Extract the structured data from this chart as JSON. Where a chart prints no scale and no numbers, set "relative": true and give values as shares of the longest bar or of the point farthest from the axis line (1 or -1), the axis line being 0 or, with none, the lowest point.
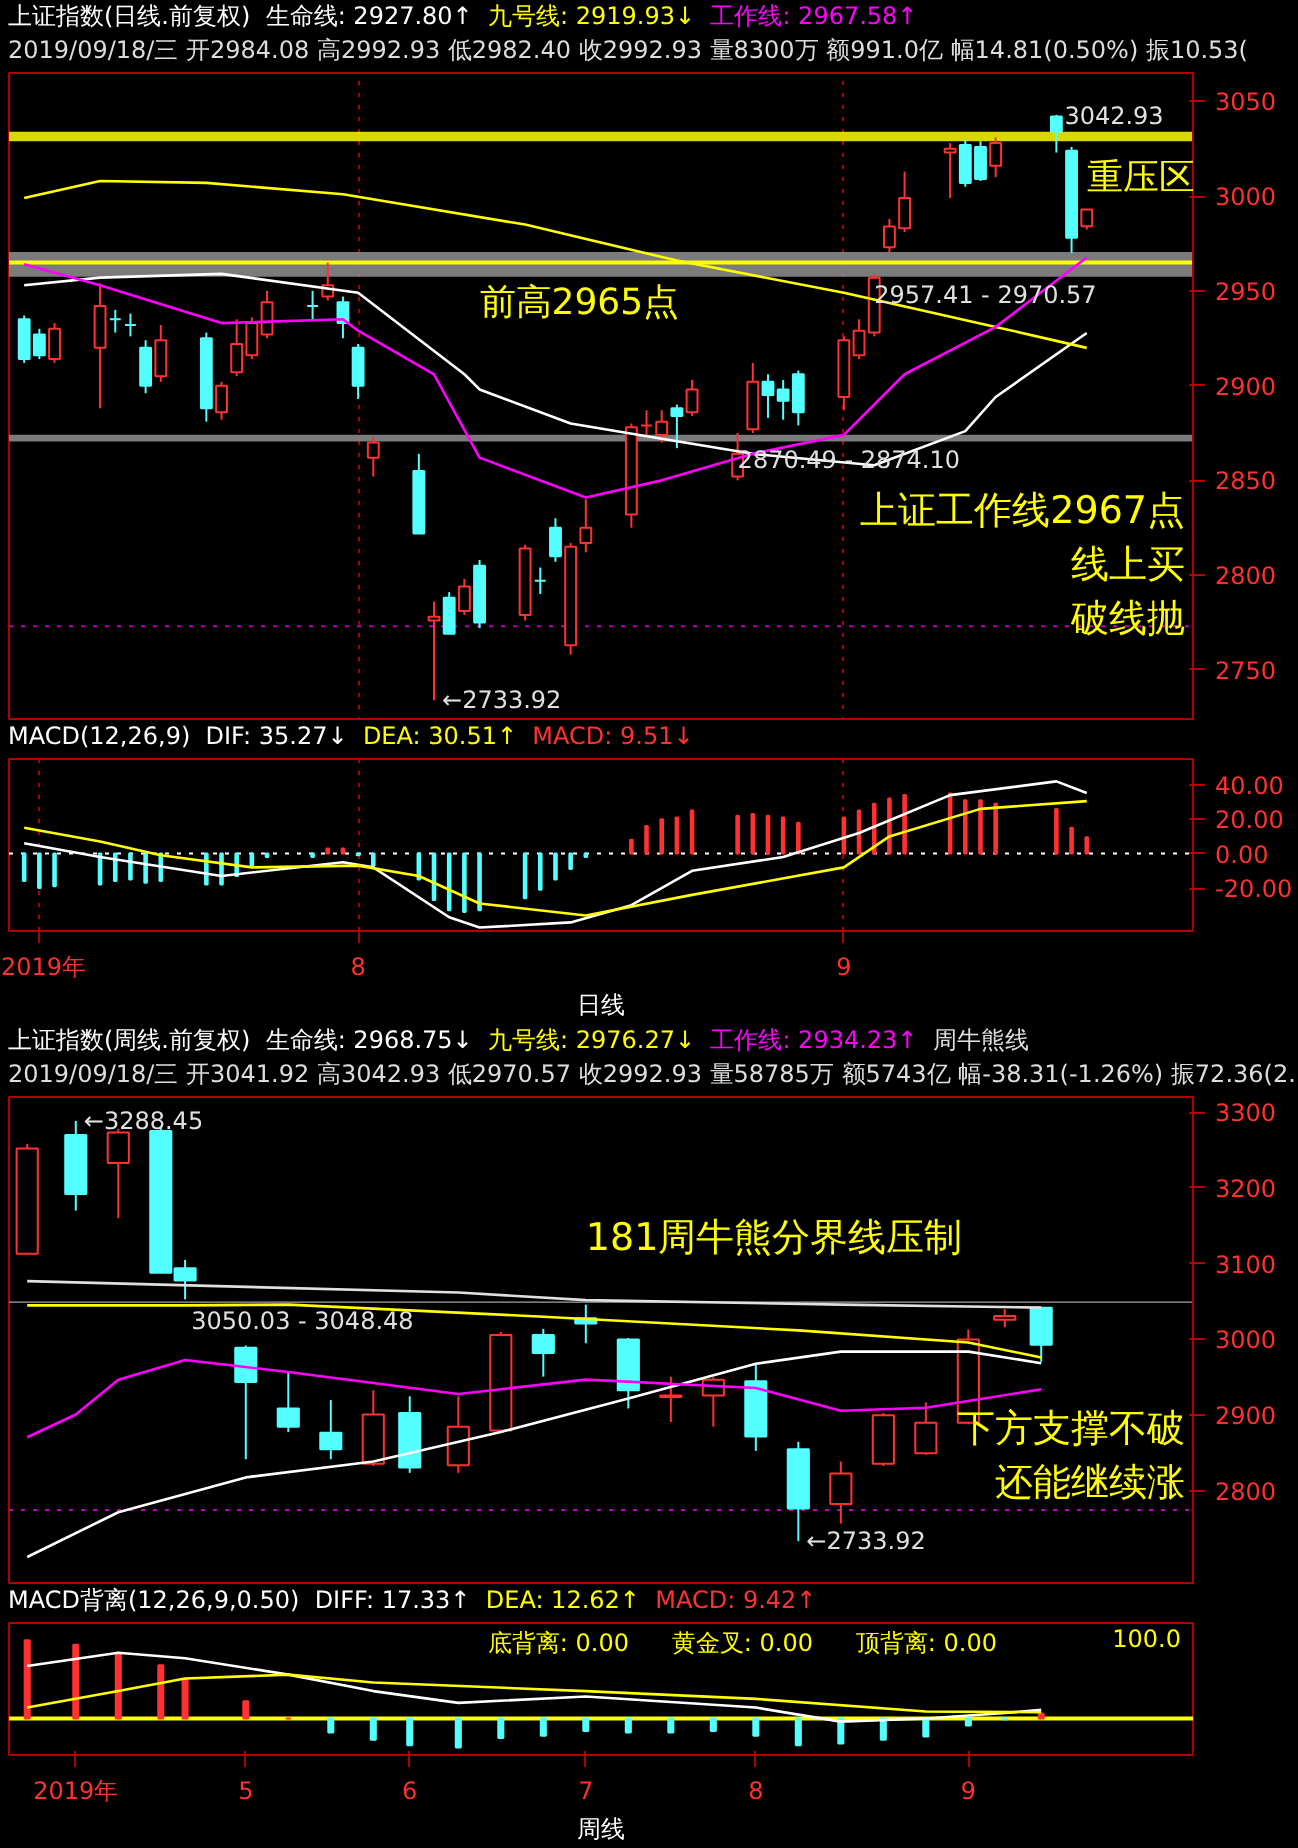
{
  "chart_data": [
    {
      "type": "candlestick",
      "title": "上证指数(日线.前复权)",
      "subtitle": "2019/09/18/三 开2984.08 高2992.93 低2982.40 收2992.93 量8300万 额991.0亿 幅14.81(0.50%) 振10.53(",
      "x": [
        "2019-07-10",
        "2019-07-11",
        "2019-07-12",
        "2019-07-15",
        "2019-07-16",
        "2019-07-17",
        "2019-07-18",
        "2019-07-19",
        "2019-07-22",
        "2019-07-23",
        "2019-07-24",
        "2019-07-25",
        "2019-07-26",
        "2019-07-29",
        "2019-07-30",
        "2019-07-31",
        "2019-08-01",
        "2019-08-02",
        "2019-08-05",
        "2019-08-06",
        "2019-08-07",
        "2019-08-08",
        "2019-08-09",
        "2019-08-12",
        "2019-08-13",
        "2019-08-14",
        "2019-08-15",
        "2019-08-16",
        "2019-08-19",
        "2019-08-20",
        "2019-08-21",
        "2019-08-22",
        "2019-08-23",
        "2019-08-26",
        "2019-08-27",
        "2019-08-28",
        "2019-08-29",
        "2019-08-30",
        "2019-09-02",
        "2019-09-03",
        "2019-09-04",
        "2019-09-05",
        "2019-09-06",
        "2019-09-09",
        "2019-09-10",
        "2019-09-11",
        "2019-09-12",
        "2019-09-16",
        "2019-09-17",
        "2019-09-18"
      ],
      "ohlc": [
        [
          2935,
          2937,
          2912,
          2914
        ],
        [
          2927,
          2930,
          2914,
          2916
        ],
        [
          2914,
          2933,
          2912,
          2930
        ],
        [
          2920,
          2954,
          2888,
          2942
        ],
        [
          2935,
          2940,
          2928,
          2935
        ],
        [
          2932,
          2938,
          2926,
          2932
        ],
        [
          2920,
          2924,
          2896,
          2900
        ],
        [
          2905,
          2932,
          2902,
          2924
        ],
        [
          2925,
          2928,
          2881,
          2888
        ],
        [
          2886,
          2902,
          2882,
          2900
        ],
        [
          2907,
          2935,
          2905,
          2922
        ],
        [
          2916,
          2936,
          2914,
          2933
        ],
        [
          2927,
          2950,
          2925,
          2944
        ],
        [
          2942,
          2950,
          2935,
          2942
        ],
        [
          2947,
          2965,
          2945,
          2953
        ],
        [
          2944,
          2947,
          2925,
          2933
        ],
        [
          2920,
          2922,
          2893,
          2900
        ],
        [
          2862,
          2873,
          2852,
          2870
        ],
        [
          2855,
          2864,
          2822,
          2822
        ],
        [
          2776,
          2786,
          2733.92,
          2778
        ],
        [
          2788,
          2791,
          2769,
          2769
        ],
        [
          2781,
          2798,
          2779,
          2794
        ],
        [
          2805,
          2808,
          2772,
          2775
        ],
        [
          2779,
          2816,
          2776,
          2814
        ],
        [
          2797,
          2804,
          2790,
          2797
        ],
        [
          2825,
          2830,
          2807,
          2810
        ],
        [
          2763,
          2817,
          2758,
          2815
        ],
        [
          2817,
          2840,
          2812,
          2825
        ],
        [
          2832,
          2880,
          2825,
          2878
        ],
        [
          2879,
          2887,
          2873,
          2879
        ],
        [
          2874,
          2887,
          2870,
          2881
        ],
        [
          2888,
          2890,
          2867,
          2884
        ],
        [
          2886,
          2903,
          2884,
          2898
        ],
        [
          2852,
          2875,
          2850,
          2864
        ],
        [
          2877,
          2912,
          2875,
          2902
        ],
        [
          2902,
          2906,
          2883,
          2895
        ],
        [
          2898,
          2903,
          2882,
          2892
        ],
        [
          2906,
          2908,
          2879,
          2886
        ],
        [
          2894,
          2926,
          2887,
          2924
        ],
        [
          2916,
          2935,
          2914,
          2929
        ],
        [
          2928,
          2959,
          2926,
          2957
        ],
        [
          2973,
          2988,
          2970,
          2984
        ],
        [
          2983,
          3013,
          2981,
          2999
        ],
        [
          3023,
          3028,
          2999,
          3025
        ],
        [
          3027,
          3030,
          3005,
          3007
        ],
        [
          3026,
          3029,
          3008,
          3009
        ],
        [
          3016,
          3031,
          3010,
          3028
        ],
        [
          3042,
          3042.93,
          3023,
          3034
        ],
        [
          3024,
          3026,
          2970,
          2978
        ],
        [
          2984.08,
          2992.93,
          2982.4,
          2992.93
        ]
      ],
      "colors": [
        "#54ffff",
        "#54ffff",
        "#ff3232",
        "#ff3232",
        "#54ffff",
        "#54ffff",
        "#54ffff",
        "#ff3232",
        "#54ffff",
        "#ff3232",
        "#ff3232",
        "#ff3232",
        "#ff3232",
        "#54ffff",
        "#ff3232",
        "#54ffff",
        "#54ffff",
        "#ff3232",
        "#54ffff",
        "#ff3232",
        "#54ffff",
        "#ff3232",
        "#54ffff",
        "#ff3232",
        "#54ffff",
        "#54ffff",
        "#ff3232",
        "#ff3232",
        "#ff3232",
        "#ff3232",
        "#ff3232",
        "#54ffff",
        "#ff3232",
        "#ff3232",
        "#ff3232",
        "#54ffff",
        "#54ffff",
        "#54ffff",
        "#ff3232",
        "#ff3232",
        "#ff3232",
        "#ff3232",
        "#ff3232",
        "#ff3232",
        "#54ffff",
        "#54ffff",
        "#ff3232",
        "#54ffff",
        "#54ffff",
        "#ff3232"
      ],
      "series": [
        {
          "name": "生命线: 2927.80↑",
          "type": "line",
          "color": "#ffffff",
          "x": [
            "2019-07-10",
            "2019-07-15",
            "2019-07-23",
            "2019-08-01",
            "2019-08-08",
            "2019-08-09",
            "2019-08-15",
            "2019-08-21",
            "2019-08-27",
            "2019-09-04",
            "2019-09-10",
            "2019-09-12",
            "2019-09-18"
          ],
          "values": [
            2953,
            2957,
            2959,
            2949,
            2906,
            2898,
            2880,
            2872,
            2864,
            2858,
            2876,
            2894,
            2927.8
          ]
        },
        {
          "name": "九号线: 2919.93↓",
          "type": "line",
          "color": "#ffff00",
          "x": [
            "2019-07-10",
            "2019-07-15",
            "2019-07-22",
            "2019-07-31",
            "2019-08-12",
            "2019-08-22",
            "2019-09-02",
            "2019-09-12",
            "2019-09-18"
          ],
          "values": [
            2999,
            3008,
            3007,
            3001,
            2985,
            2966,
            2949,
            2931,
            2919.93
          ]
        },
        {
          "name": "工作线: 2967.58↑",
          "type": "line",
          "color": "#ff00ff",
          "x": [
            "2019-07-10",
            "2019-07-15",
            "2019-07-23",
            "2019-07-31",
            "2019-08-01",
            "2019-08-06",
            "2019-08-09",
            "2019-08-16",
            "2019-08-21",
            "2019-08-27",
            "2019-09-02",
            "2019-09-06",
            "2019-09-12",
            "2019-09-18"
          ],
          "values": [
            2964,
            2953,
            2933,
            2935,
            2929,
            2906,
            2862,
            2841,
            2850,
            2864,
            2874,
            2906,
            2931,
            2967.58
          ]
        }
      ],
      "xlim": [
        "2019-07-09",
        "2019-09-25"
      ],
      "ylim": [
        2723,
        3065
      ],
      "xticks": [
        {
          "value": "2019-08-01",
          "label": null
        },
        {
          "value": "2019-09-02",
          "label": null
        }
      ],
      "yticks": [
        2750,
        2800,
        2850,
        2900,
        2950,
        3000,
        3050
      ],
      "tick_labels": "y",
      "grid": "x",
      "legend": "top",
      "ref_lines": [
        {
          "axis": "y",
          "value": 2965,
          "color": "#ffff00",
          "line_style": "solid"
        },
        {
          "axis": "y",
          "value": 2773,
          "color": "#c000c0",
          "line_style": "dotted"
        }
      ],
      "bands": [
        {
          "axis": "y",
          "from": 3029,
          "to": 3034,
          "color": "#ffff00"
        },
        {
          "axis": "y",
          "from": 2957.41,
          "to": 2970.57,
          "color": "#909090"
        },
        {
          "axis": "y",
          "from": 2870.49,
          "to": 2874.1,
          "color": "#909090"
        }
      ],
      "annotations": [
        {
          "text": "前高2965点",
          "x": "2019-08-09",
          "y": 2965
        },
        {
          "text": "重压区",
          "x": "2019-09-18",
          "y": 3031
        },
        "上证工作线2967点",
        "线上买",
        "破线抛",
        {
          "text": "3042.93",
          "x": "2019-09-16",
          "y": 3042.93
        },
        {
          "text": "←2733.92",
          "x": "2019-08-06",
          "y": 2733.92
        },
        {
          "text": "2957.41 - 2970.57",
          "x": "2019-09-04",
          "y": 2957.41
        },
        {
          "text": "2870.49 - 2874.10",
          "x": "2019-08-26",
          "y": 2870.49
        }
      ]
    },
    {
      "type": "bar",
      "title": "MACD(12,26,9)",
      "xlabel": "日线",
      "x": [
        "2019-07-10",
        "2019-07-11",
        "2019-07-12",
        "2019-07-15",
        "2019-07-16",
        "2019-07-17",
        "2019-07-18",
        "2019-07-19",
        "2019-07-22",
        "2019-07-23",
        "2019-07-24",
        "2019-07-25",
        "2019-07-26",
        "2019-07-29",
        "2019-07-30",
        "2019-07-31",
        "2019-08-01",
        "2019-08-02",
        "2019-08-05",
        "2019-08-06",
        "2019-08-07",
        "2019-08-08",
        "2019-08-09",
        "2019-08-12",
        "2019-08-13",
        "2019-08-14",
        "2019-08-15",
        "2019-08-16",
        "2019-08-19",
        "2019-08-20",
        "2019-08-21",
        "2019-08-22",
        "2019-08-23",
        "2019-08-26",
        "2019-08-27",
        "2019-08-28",
        "2019-08-29",
        "2019-08-30",
        "2019-09-02",
        "2019-09-03",
        "2019-09-04",
        "2019-09-05",
        "2019-09-06",
        "2019-09-09",
        "2019-09-10",
        "2019-09-11",
        "2019-09-12",
        "2019-09-16",
        "2019-09-17",
        "2019-09-18"
      ],
      "series": [
        {
          "name": "DIF: 35.27↓",
          "type": "line",
          "color": "#ffffff",
          "x": [
            "2019-07-10",
            "2019-07-15",
            "2019-07-23",
            "2019-07-31",
            "2019-08-02",
            "2019-08-07",
            "2019-08-09",
            "2019-08-15",
            "2019-08-19",
            "2019-08-23",
            "2019-08-29",
            "2019-09-03",
            "2019-09-09",
            "2019-09-16",
            "2019-09-18"
          ],
          "values": [
            6,
            -2,
            -13,
            -5,
            -8,
            -37,
            -43,
            -40,
            -30,
            -10,
            -2,
            12,
            34,
            42,
            35.27
          ]
        },
        {
          "name": "DEA: 30.51↑",
          "type": "line",
          "color": "#ffff00",
          "x": [
            "2019-07-10",
            "2019-07-15",
            "2019-07-19",
            "2019-07-25",
            "2019-08-01",
            "2019-08-05",
            "2019-08-09",
            "2019-08-16",
            "2019-08-23",
            "2019-09-02",
            "2019-09-05",
            "2019-09-11",
            "2019-09-18"
          ],
          "values": [
            15,
            7,
            -1,
            -8,
            -7,
            -13,
            -29,
            -36,
            -24,
            -8,
            10,
            26,
            30.51
          ]
        },
        {
          "name": "MACD: 9.51↓",
          "type": "bar",
          "values": [
            -16,
            -20,
            -19,
            -18,
            -16,
            -15,
            -17,
            -16,
            -18,
            -18,
            -13,
            -8,
            -2,
            -2,
            3,
            3,
            -1,
            -7,
            -15,
            -27,
            -33,
            -34,
            -33,
            -26,
            -21,
            -15,
            -9,
            -2,
            8,
            16,
            20,
            21,
            25,
            22,
            23,
            22,
            21,
            18,
            21,
            25,
            29,
            32,
            34,
            35,
            31,
            31,
            29,
            26,
            15,
            9.51
          ],
          "colors": [
            "#54ffff",
            "#54ffff",
            "#54ffff",
            "#54ffff",
            "#54ffff",
            "#54ffff",
            "#54ffff",
            "#54ffff",
            "#54ffff",
            "#54ffff",
            "#54ffff",
            "#54ffff",
            "#54ffff",
            "#54ffff",
            "#ff3232",
            "#ff3232",
            "#54ffff",
            "#54ffff",
            "#54ffff",
            "#54ffff",
            "#54ffff",
            "#54ffff",
            "#54ffff",
            "#54ffff",
            "#54ffff",
            "#54ffff",
            "#54ffff",
            "#54ffff",
            "#ff3232",
            "#ff3232",
            "#ff3232",
            "#ff3232",
            "#ff3232",
            "#ff3232",
            "#ff3232",
            "#ff3232",
            "#ff3232",
            "#ff3232",
            "#ff3232",
            "#ff3232",
            "#ff3232",
            "#ff3232",
            "#ff3232",
            "#ff3232",
            "#ff3232",
            "#ff3232",
            "#ff3232",
            "#ff3232",
            "#ff3232",
            "#ff3232"
          ]
        }
      ],
      "xlim": [
        "2019-07-09",
        "2019-09-25"
      ],
      "ylim": [
        -45,
        55
      ],
      "xticks": [
        {
          "value": "2019-07-11",
          "label": "2019年"
        },
        {
          "value": "2019-08-01",
          "label": "8"
        },
        {
          "value": "2019-09-02",
          "label": "9"
        }
      ],
      "yticks": [
        {
          "value": -20,
          "label": "-20.00"
        },
        {
          "value": 0,
          "label": "0.00"
        },
        {
          "value": 20,
          "label": "20.00"
        },
        {
          "value": 40,
          "label": "40.00"
        }
      ],
      "grid": "x",
      "legend": "top",
      "ref_lines": [
        {
          "axis": "y",
          "value": 0,
          "color": "#ffffff",
          "line_style": "dotted"
        }
      ]
    },
    {
      "type": "candlestick",
      "title": "上证指数(周线.前复权)",
      "subtitle": "2019/09/18/三 开3041.92 高3042.93 低2970.57 收2992.93 量58785万 额5743亿 幅-38.31(-1.26%) 振72.36(2.",
      "x": [
        "2019-04-04",
        "2019-04-12",
        "2019-04-19",
        "2019-04-26",
        "2019-04-30",
        "2019-05-10",
        "2019-05-17",
        "2019-05-24",
        "2019-05-31",
        "2019-06-06",
        "2019-06-14",
        "2019-06-21",
        "2019-06-28",
        "2019-07-05",
        "2019-07-12",
        "2019-07-19",
        "2019-07-26",
        "2019-08-02",
        "2019-08-09",
        "2019-08-16",
        "2019-08-23",
        "2019-08-30",
        "2019-09-06",
        "2019-09-12",
        "2019-09-18"
      ],
      "ohlc": [
        [
          3113,
          3258,
          3113,
          3252
        ],
        [
          3270,
          3288.45,
          3170,
          3192
        ],
        [
          3233,
          3278,
          3160,
          3273
        ],
        [
          3275,
          3280,
          3088,
          3088
        ],
        [
          3094,
          3105,
          3053,
          3078
        ],
        [
          2989,
          2992,
          2842,
          2944
        ],
        [
          2909,
          2958,
          2878,
          2885
        ],
        [
          2877,
          2920,
          2842,
          2855
        ],
        [
          2836,
          2933,
          2833,
          2901
        ],
        [
          2903,
          2925,
          2824,
          2831
        ],
        [
          2834,
          2925,
          2824,
          2885
        ],
        [
          2880,
          3010,
          2878,
          3006
        ],
        [
          3006,
          3014,
          2951,
          2982
        ],
        [
          3028,
          3046,
          2995,
          3021
        ],
        [
          3000,
          3002,
          2909,
          2933
        ],
        [
          2924,
          2951,
          2891,
          2926
        ],
        [
          2926,
          2950,
          2885,
          2947
        ],
        [
          2945,
          2968,
          2853,
          2872
        ],
        [
          2855,
          2865,
          2733.92,
          2777
        ],
        [
          2783,
          2839,
          2757,
          2823
        ],
        [
          2836,
          2903,
          2833,
          2900
        ],
        [
          2850,
          2917,
          2848,
          2890
        ],
        [
          2890,
          3013,
          2888,
          3000
        ],
        [
          3026,
          3040,
          3016,
          3031
        ],
        [
          3041.92,
          3042.93,
          2970.57,
          2992.93
        ]
      ],
      "colors": [
        "#ff3232",
        "#54ffff",
        "#ff3232",
        "#54ffff",
        "#54ffff",
        "#54ffff",
        "#54ffff",
        "#54ffff",
        "#ff3232",
        "#54ffff",
        "#ff3232",
        "#ff3232",
        "#54ffff",
        "#54ffff",
        "#54ffff",
        "#ff3232",
        "#ff3232",
        "#54ffff",
        "#54ffff",
        "#ff3232",
        "#ff3232",
        "#ff3232",
        "#ff3232",
        "#ff3232",
        "#54ffff"
      ],
      "series": [
        {
          "name": "生命线: 2968.75↓",
          "type": "line",
          "color": "#ffffff",
          "x": [
            "2019-04-04",
            "2019-04-19",
            "2019-05-10",
            "2019-05-31",
            "2019-06-21",
            "2019-07-12",
            "2019-08-02",
            "2019-08-16",
            "2019-09-06",
            "2019-09-18"
          ],
          "values": [
            2713,
            2772,
            2818,
            2839,
            2878,
            2922,
            2968,
            2984,
            2984,
            2968.75
          ]
        },
        {
          "name": "九号线: 2976.27↓",
          "type": "line",
          "color": "#ffff00",
          "x": [
            "2019-04-04",
            "2019-04-30",
            "2019-05-17",
            "2019-06-28",
            "2019-08-09",
            "2019-09-06",
            "2019-09-18"
          ],
          "values": [
            3045,
            3045,
            3046,
            3030,
            3012,
            2996,
            2976.27
          ]
        },
        {
          "name": "工作线: 2934.23↑",
          "type": "line",
          "color": "#ff00ff",
          "x": [
            "2019-04-04",
            "2019-04-12",
            "2019-04-19",
            "2019-04-30",
            "2019-05-17",
            "2019-06-14",
            "2019-07-05",
            "2019-08-02",
            "2019-08-16",
            "2019-08-30",
            "2019-09-18"
          ],
          "values": [
            2871,
            2901,
            2947,
            2973,
            2957,
            2928,
            2947,
            2936,
            2906,
            2910,
            2934.23
          ]
        },
        {
          "name": "周牛熊线",
          "type": "line",
          "color": "#e0e0e0",
          "x": [
            "2019-04-04",
            "2019-06-14",
            "2019-07-05",
            "2019-08-16",
            "2019-09-18"
          ],
          "values": [
            3077,
            3062,
            3052,
            3046,
            3042
          ]
        }
      ],
      "xlim": [
        "2019-04-01",
        "2019-10-13"
      ],
      "ylim": [
        2676,
        3320
      ],
      "yticks": [
        2800,
        2900,
        3000,
        3100,
        3200,
        3300
      ],
      "tick_labels": "y",
      "legend": "top",
      "ref_lines": [
        {
          "axis": "y",
          "value": 2775,
          "color": "#c000c0",
          "line_style": "dotted"
        }
      ],
      "bands": [
        {
          "axis": "y",
          "from": 3048.48,
          "to": 3050.03,
          "color": "#c0c0c0"
        }
      ],
      "annotations": [
        {
          "text": "181周牛熊分界线压制",
          "x": "2019-07-05",
          "y": 3052
        },
        "下方支撑不破",
        "还能继续涨",
        {
          "text": "←2733.92",
          "x": "2019-08-09",
          "y": 2733.92
        },
        {
          "text": "←3288.45",
          "x": "2019-04-12",
          "y": 3288.45
        },
        {
          "text": "3050.03 - 3048.48",
          "x": "2019-05-01",
          "y": 3048.48
        }
      ]
    },
    {
      "type": "bar",
      "title": "MACD背离(12,26,9,0.50)",
      "xlabel": "周线",
      "x": [
        "2019-04-04",
        "2019-04-12",
        "2019-04-19",
        "2019-04-26",
        "2019-04-30",
        "2019-05-10",
        "2019-05-17",
        "2019-05-24",
        "2019-05-31",
        "2019-06-06",
        "2019-06-14",
        "2019-06-21",
        "2019-06-28",
        "2019-07-05",
        "2019-07-12",
        "2019-07-19",
        "2019-07-26",
        "2019-08-02",
        "2019-08-09",
        "2019-08-16",
        "2019-08-23",
        "2019-08-30",
        "2019-09-06",
        "2019-09-12",
        "2019-09-18"
      ],
      "series": [
        {
          "name": "DIFF: 17.33↑",
          "type": "line",
          "color": "#ffffff",
          "x": [
            "2019-04-04",
            "2019-04-19",
            "2019-04-30",
            "2019-05-17",
            "2019-05-31",
            "2019-06-14",
            "2019-07-05",
            "2019-08-02",
            "2019-08-16",
            "2019-08-30",
            "2019-09-12",
            "2019-09-18"
          ],
          "values": [
            0.67,
            0.84,
            0.77,
            0.56,
            0.35,
            0.2,
            0.28,
            0.14,
            -0.04,
            0,
            0.07,
            0.11
          ]
        },
        {
          "name": "DEA: 12.62↑",
          "type": "line",
          "color": "#ffff00",
          "x": [
            "2019-04-04",
            "2019-04-19",
            "2019-04-30",
            "2019-05-17",
            "2019-05-31",
            "2019-07-05",
            "2019-08-02",
            "2019-08-30",
            "2019-09-18"
          ],
          "values": [
            0.14,
            0.35,
            0.51,
            0.56,
            0.46,
            0.35,
            0.25,
            0.09,
            0.08
          ]
        },
        {
          "name": "MACD: 9.42↑",
          "type": "bar",
          "values": [
            1,
            0.94,
            0.82,
            0.68,
            0.5,
            0.22,
            0,
            -0.18,
            -0.27,
            -0.34,
            -0.37,
            -0.25,
            -0.22,
            -0.16,
            -0.18,
            -0.18,
            -0.16,
            -0.22,
            -0.34,
            -0.32,
            -0.27,
            -0.23,
            -0.09,
            -0.01,
            0.06
          ],
          "colors": [
            "#ff3232",
            "#ff3232",
            "#ff3232",
            "#ff3232",
            "#ff3232",
            "#ff3232",
            "#ff3232",
            "#54ffff",
            "#54ffff",
            "#54ffff",
            "#54ffff",
            "#54ffff",
            "#54ffff",
            "#54ffff",
            "#54ffff",
            "#54ffff",
            "#54ffff",
            "#54ffff",
            "#54ffff",
            "#54ffff",
            "#54ffff",
            "#54ffff",
            "#54ffff",
            "#54ffff",
            "#ff3232"
          ]
        }
      ],
      "xlim": [
        "2019-04-01",
        "2019-10-13"
      ],
      "relative": true,
      "xticks": [
        {
          "value": "2019-04-12",
          "label": "2019年"
        },
        {
          "value": "2019-05-10",
          "label": "5"
        },
        {
          "value": "2019-06-06",
          "label": "6"
        },
        {
          "value": "2019-07-05",
          "label": "7"
        },
        {
          "value": "2019-08-02",
          "label": "8"
        },
        {
          "value": "2019-09-06",
          "label": "9"
        }
      ],
      "legend": "top",
      "ref_lines": [
        {
          "axis": "y",
          "value": 0,
          "color": "#ffff00",
          "line_style": "solid"
        }
      ],
      "annotations": [
        "底背离: 0.00",
        "黄金叉: 0.00",
        "顶背离: 0.00",
        "100.0"
      ]
    }
  ]
}
